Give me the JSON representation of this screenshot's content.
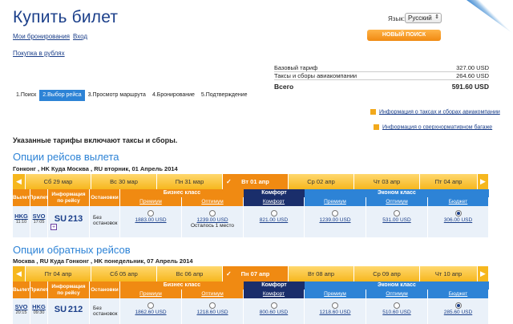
{
  "header": {
    "title": "Купить билет",
    "lang_label": "Язык:",
    "lang_value": "Русский",
    "my_bookings": "Мои бронирования",
    "login": "Вход",
    "new_search": "НОВЫЙ ПОИСК",
    "rub_purchase": "Покупка в рублях"
  },
  "tariff": {
    "base_label": "Базовый тариф",
    "base_value": "327.00 USD",
    "tax_label": "Таксы и сборы авиакомпании",
    "tax_value": "264.60 USD",
    "total_label": "Всего",
    "total_value": "591.60 USD"
  },
  "steps": [
    "1.Поиск",
    "2.Выбор рейса",
    "3.Просмотр маршрута",
    "4.Бронирование",
    "5.Подтверждение"
  ],
  "info": {
    "taxes": "Информация о таксах и сборах авиакомпании",
    "baggage": "Информация о сверхнормативном багаже"
  },
  "note": "Указанные тарифы включают таксы и сборы.",
  "outbound": {
    "title": "Опции рейсов вылета",
    "route": "Гонконг , HK Куда Москва , RU вторник, 01 Апрель 2014",
    "dates": [
      "Сб 29 мар",
      "Вс 30 мар",
      "Пн 31 мар",
      "Вт 01 апр",
      "Ср 02 апр",
      "Чт 03 апр",
      "Пт 04 апр"
    ],
    "from": "HKG",
    "from_time": "11:10",
    "to": "SVO",
    "to_time": "17:05",
    "airline": "SU",
    "flight": "213",
    "stops": "Без остановок",
    "prices": [
      {
        "price": "1883.00 USD",
        "note": ""
      },
      {
        "price": "1239.00 USD",
        "note": "Осталось 1 место"
      },
      {
        "price": "821.00 USD",
        "note": ""
      },
      {
        "price": "1239.00 USD",
        "note": ""
      },
      {
        "price": "531.00 USD",
        "note": ""
      },
      {
        "price": "306.00 USD",
        "note": ""
      }
    ]
  },
  "inbound": {
    "title": "Опции обратных рейсов",
    "route": "Москва , RU Куда Гонконг , HK понедельник, 07 Апрель 2014",
    "dates": [
      "Пт 04 апр",
      "Сб 05 апр",
      "Вс 06 апр",
      "Пн 07 апр",
      "Вт 08 апр",
      "Ср 09 апр",
      "Чт 10 апр"
    ],
    "from": "SVO",
    "from_time": "20:15",
    "to": "HKG",
    "to_time": "09:30",
    "airline": "SU",
    "flight": "212",
    "stops": "Без остановок",
    "prices": [
      {
        "price": "1862.60 USD",
        "note": ""
      },
      {
        "price": "1218.60 USD",
        "note": ""
      },
      {
        "price": "800.60 USD",
        "note": ""
      },
      {
        "price": "1218.60 USD",
        "note": ""
      },
      {
        "price": "510.60 USD",
        "note": ""
      },
      {
        "price": "285.60 USD",
        "note": ""
      }
    ]
  },
  "table_headers": {
    "departure": "Вылет",
    "arrival": "Прилет",
    "flight_info": "Информация по рейсу",
    "stops": "Остановки",
    "business": "Бизнес класс",
    "comfort": "Комфорт",
    "economy": "Эконом класс",
    "premium": "Премиум",
    "optimum": "Оптимум",
    "budget": "Бюджет"
  }
}
